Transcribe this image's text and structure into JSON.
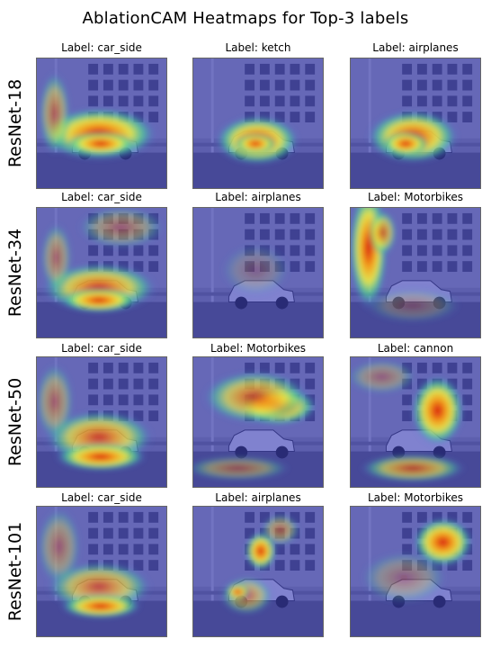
{
  "figure": {
    "title": "AblationCAM Heatmaps for Top-3 labels"
  },
  "rows": [
    {
      "model": "ResNet-18",
      "cells": [
        {
          "label": "Label: car_side"
        },
        {
          "label": "Label: ketch"
        },
        {
          "label": "Label: airplanes"
        }
      ]
    },
    {
      "model": "ResNet-34",
      "cells": [
        {
          "label": "Label: car_side"
        },
        {
          "label": "Label: airplanes"
        },
        {
          "label": "Label: Motorbikes"
        }
      ]
    },
    {
      "model": "ResNet-50",
      "cells": [
        {
          "label": "Label: car_side"
        },
        {
          "label": "Label: Motorbikes"
        },
        {
          "label": "Label: cannon"
        }
      ]
    },
    {
      "model": "ResNet-101",
      "cells": [
        {
          "label": "Label: car_side"
        },
        {
          "label": "Label: airplanes"
        },
        {
          "label": "Label: Motorbikes"
        }
      ]
    }
  ]
}
